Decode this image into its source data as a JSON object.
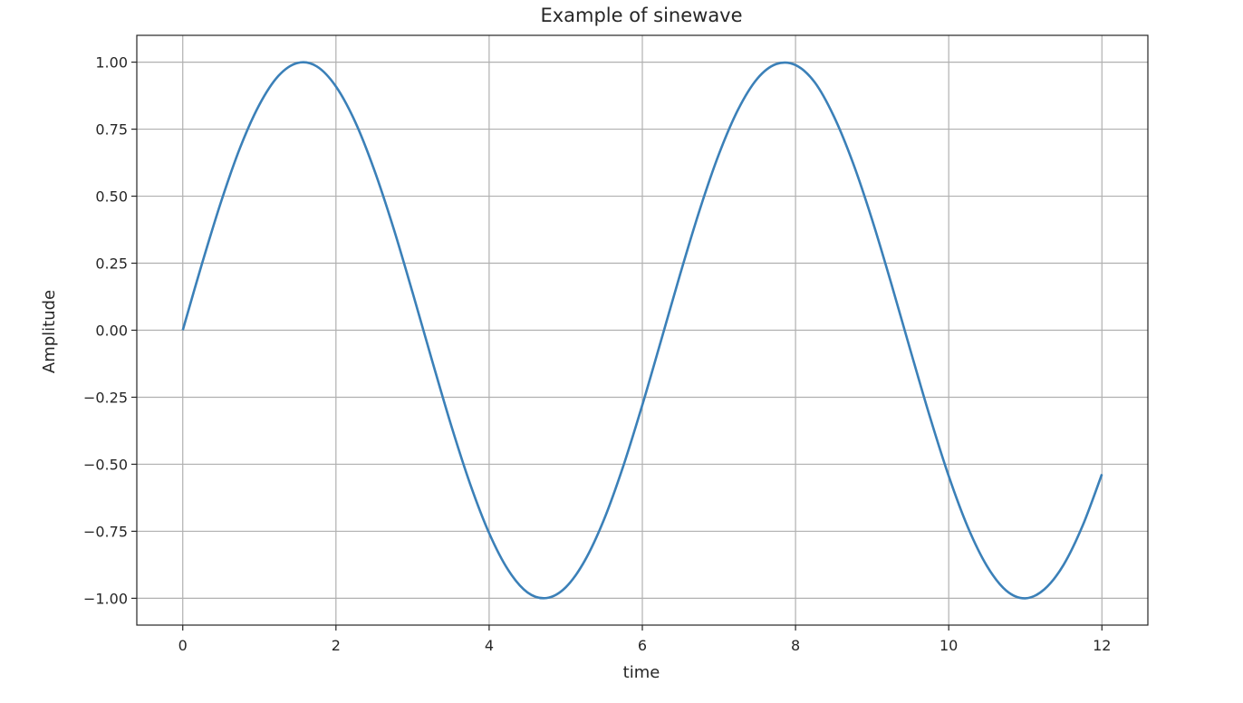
{
  "chart_data": {
    "type": "line",
    "title": "Example of sinewave",
    "xlabel": "time",
    "ylabel": "Amplitude",
    "xlim": [
      -0.6,
      12.6
    ],
    "ylim": [
      -1.1,
      1.1
    ],
    "grid": true,
    "xticks": [
      0,
      2,
      4,
      6,
      8,
      10,
      12
    ],
    "xtick_labels": [
      "0",
      "2",
      "4",
      "6",
      "8",
      "10",
      "12"
    ],
    "yticks": [
      1.0,
      0.75,
      0.5,
      0.25,
      0.0,
      -0.25,
      -0.5,
      -0.75,
      -1.0
    ],
    "ytick_labels": [
      "1.00",
      "0.75",
      "0.50",
      "0.25",
      "0.00",
      "−0.25",
      "−0.50",
      "−0.75",
      "−1.00"
    ],
    "series": [
      {
        "color": "#3b80b8",
        "x": [
          0,
          0.25,
          0.5,
          0.75,
          1,
          1.25,
          1.5,
          1.75,
          2,
          2.25,
          2.5,
          2.75,
          3,
          3.25,
          3.5,
          3.75,
          4,
          4.25,
          4.5,
          4.75,
          5,
          5.25,
          5.5,
          5.75,
          6,
          6.25,
          6.5,
          6.75,
          7,
          7.25,
          7.5,
          7.75,
          8,
          8.25,
          8.5,
          8.75,
          9,
          9.25,
          9.5,
          9.75,
          10,
          10.25,
          10.5,
          10.75,
          11,
          11.25,
          11.5,
          11.75,
          12
        ],
        "y": [
          0.0,
          0.247,
          0.479,
          0.682,
          0.841,
          0.949,
          0.997,
          0.984,
          0.909,
          0.778,
          0.598,
          0.382,
          0.141,
          -0.108,
          -0.351,
          -0.572,
          -0.757,
          -0.895,
          -0.978,
          -0.999,
          -0.959,
          -0.859,
          -0.706,
          -0.508,
          -0.279,
          -0.033,
          0.215,
          0.45,
          0.657,
          0.823,
          0.938,
          0.993,
          0.989,
          0.925,
          0.798,
          0.624,
          0.412,
          0.174,
          -0.075,
          -0.319,
          -0.544,
          -0.735,
          -0.88,
          -0.971,
          -1.0,
          -0.966,
          -0.875,
          -0.728,
          -0.537
        ]
      }
    ]
  }
}
